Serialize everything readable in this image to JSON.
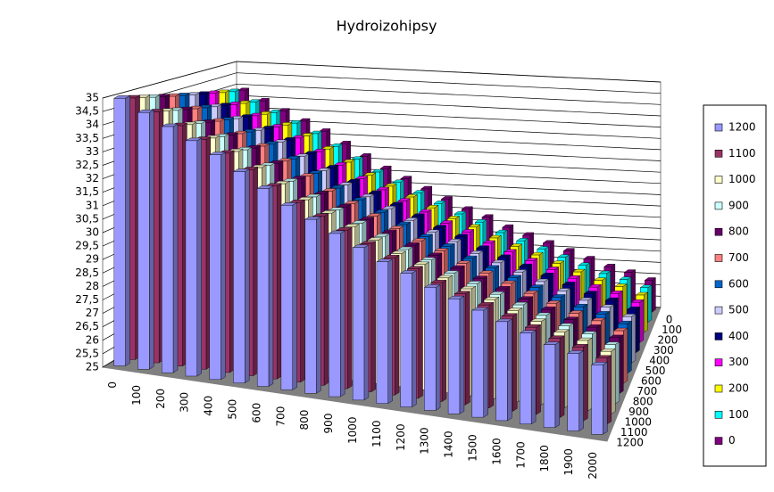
{
  "chart_data": {
    "type": "bar3d",
    "title": "Hydroizohipsy",
    "categories": [
      "0",
      "100",
      "200",
      "300",
      "400",
      "500",
      "600",
      "700",
      "800",
      "900",
      "1000",
      "1100",
      "1200",
      "1300",
      "1400",
      "1500",
      "1600",
      "1700",
      "1800",
      "1900",
      "2000"
    ],
    "series": [
      {
        "name": "1200",
        "color": "#9999ff",
        "values": [
          35,
          34.6,
          34.2,
          33.8,
          33.4,
          32.9,
          32.4,
          31.9,
          31.5,
          31.1,
          30.7,
          30.3,
          30,
          29.6,
          29.3,
          29,
          28.7,
          28.4,
          28.1,
          27.9,
          27.6
        ]
      },
      {
        "name": "1100",
        "color": "#993366",
        "values": [
          34.9,
          34.5,
          34.1,
          33.7,
          33.3,
          32.8,
          32.3,
          31.8,
          31.4,
          31,
          30.6,
          30.2,
          29.9,
          29.5,
          29.2,
          28.9,
          28.6,
          28.3,
          28,
          27.8,
          27.5
        ]
      },
      {
        "name": "1000",
        "color": "#ffffcc",
        "values": [
          34.8,
          34.4,
          34,
          33.6,
          33.2,
          32.7,
          32.2,
          31.7,
          31.3,
          30.9,
          30.5,
          30.1,
          29.8,
          29.4,
          29.1,
          28.8,
          28.5,
          28.2,
          27.9,
          27.7,
          27.4
        ]
      },
      {
        "name": "900",
        "color": "#ccffff",
        "values": [
          34.7,
          34.3,
          33.9,
          33.5,
          33.1,
          32.6,
          32.1,
          31.6,
          31.2,
          30.8,
          30.4,
          30,
          29.7,
          29.3,
          29,
          28.7,
          28.4,
          28.1,
          27.8,
          27.6,
          27.3
        ]
      },
      {
        "name": "800",
        "color": "#660066",
        "values": [
          34.6,
          34.2,
          33.8,
          33.4,
          33,
          32.5,
          32,
          31.5,
          31.1,
          30.7,
          30.3,
          29.9,
          29.6,
          29.2,
          28.9,
          28.6,
          28.3,
          28,
          27.7,
          27.5,
          27.2
        ]
      },
      {
        "name": "700",
        "color": "#ff8080",
        "values": [
          34.5,
          34.1,
          33.7,
          33.3,
          32.9,
          32.4,
          31.9,
          31.4,
          31,
          30.6,
          30.2,
          29.8,
          29.5,
          29.1,
          28.8,
          28.5,
          28.2,
          27.9,
          27.6,
          27.4,
          27.1
        ]
      },
      {
        "name": "600",
        "color": "#0066cc",
        "values": [
          34.4,
          34,
          33.6,
          33.2,
          32.8,
          32.3,
          31.8,
          31.3,
          30.9,
          30.5,
          30.1,
          29.7,
          29.4,
          29,
          28.7,
          28.4,
          28.1,
          27.8,
          27.5,
          27.3,
          27
        ]
      },
      {
        "name": "500",
        "color": "#ccccff",
        "values": [
          34.3,
          33.9,
          33.5,
          33.1,
          32.7,
          32.2,
          31.7,
          31.2,
          30.8,
          30.4,
          30,
          29.6,
          29.3,
          28.9,
          28.6,
          28.3,
          28,
          27.7,
          27.4,
          27.2,
          26.9
        ]
      },
      {
        "name": "400",
        "color": "#000080",
        "values": [
          34.2,
          33.8,
          33.4,
          33,
          32.6,
          32.1,
          31.6,
          31.1,
          30.7,
          30.3,
          29.9,
          29.5,
          29.2,
          28.8,
          28.5,
          28.2,
          27.9,
          27.6,
          27.3,
          27.1,
          26.8
        ]
      },
      {
        "name": "300",
        "color": "#ff00ff",
        "values": [
          34.1,
          33.7,
          33.3,
          32.9,
          32.5,
          32,
          31.5,
          31,
          30.6,
          30.2,
          29.8,
          29.4,
          29.1,
          28.7,
          28.4,
          28.1,
          27.8,
          27.5,
          27.2,
          27,
          26.7
        ]
      },
      {
        "name": "200",
        "color": "#ffff00",
        "values": [
          34,
          33.6,
          33.2,
          32.8,
          32.4,
          31.9,
          31.4,
          30.9,
          30.5,
          30.1,
          29.7,
          29.3,
          29,
          28.6,
          28.3,
          28,
          27.7,
          27.4,
          27.1,
          26.9,
          26.6
        ]
      },
      {
        "name": "100",
        "color": "#00ffff",
        "values": [
          33.9,
          33.5,
          33.1,
          32.7,
          32.3,
          31.8,
          31.3,
          30.8,
          30.4,
          30,
          29.6,
          29.2,
          28.9,
          28.5,
          28.2,
          27.9,
          27.6,
          27.3,
          27,
          26.8,
          26.5
        ]
      },
      {
        "name": "0",
        "color": "#800080",
        "values": [
          33.8,
          33.4,
          33,
          32.6,
          32.2,
          31.7,
          31.2,
          30.7,
          30.3,
          29.9,
          29.5,
          29.1,
          28.8,
          28.4,
          28.1,
          27.8,
          27.5,
          27.2,
          26.9,
          26.7,
          26.4
        ]
      }
    ],
    "ylim": [
      25,
      35
    ],
    "yticks": [
      25,
      {
        "value": 25.5,
        "label": "25,5"
      },
      26,
      {
        "value": 26.5,
        "label": "26,5"
      },
      27,
      {
        "value": 27.5,
        "label": "27,5"
      },
      28,
      {
        "value": 28.5,
        "label": "28,5"
      },
      29,
      {
        "value": 29.5,
        "label": "29,5"
      },
      30,
      {
        "value": 30.5,
        "label": "30,5"
      },
      31,
      {
        "value": 31.5,
        "label": "31,5"
      },
      32,
      {
        "value": 32.5,
        "label": "32,5"
      },
      33,
      {
        "value": 33.5,
        "label": "33,5"
      },
      34,
      {
        "value": 34.5,
        "label": "34,5"
      },
      35
    ],
    "grid": true
  }
}
